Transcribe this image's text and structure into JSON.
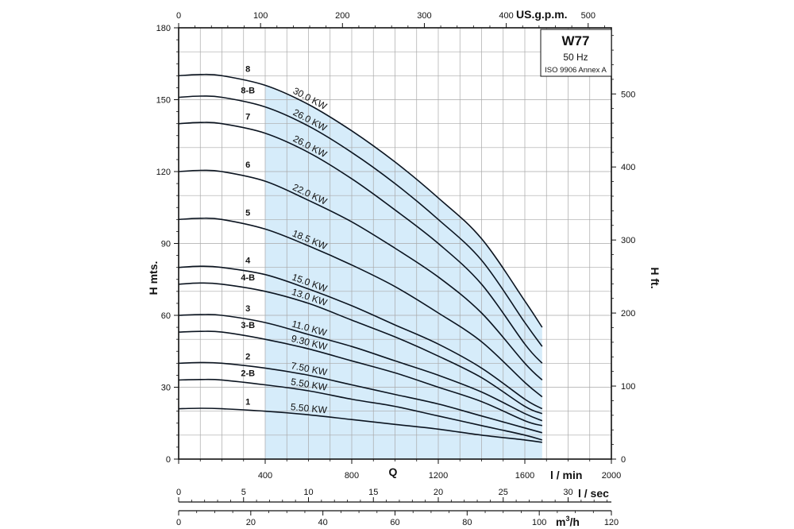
{
  "chart_data": {
    "type": "line",
    "info_box": {
      "model": "W77",
      "frequency": "50 Hz",
      "standard": "ISO 9906 Annex A"
    },
    "shaded_operating_range": {
      "q_min": 400,
      "q_max": 1680
    },
    "axes": {
      "left": {
        "label": "H mts.",
        "ticks": [
          "0",
          "30",
          "60",
          "90",
          "120",
          "150",
          "180"
        ],
        "range": [
          0,
          180
        ]
      },
      "right": {
        "label": "H ft.",
        "ticks": [
          "0",
          "100",
          "200",
          "300",
          "400",
          "500"
        ],
        "range": [
          0,
          590.55
        ]
      },
      "top": {
        "label": "US.g.p.m.",
        "ticks": [
          "0",
          "100",
          "200",
          "300",
          "400",
          "500"
        ],
        "range": [
          0,
          528.34
        ]
      },
      "bottom": {
        "label": "l / min",
        "ticks": [
          "400",
          "800",
          "1200",
          "1600",
          "2000"
        ],
        "range": [
          0,
          2000
        ]
      },
      "q_label": "Q",
      "lsec": {
        "label": "l / sec",
        "ticks": [
          "0",
          "5",
          "10",
          "15",
          "20",
          "25",
          "30"
        ],
        "range": [
          0,
          33.333
        ]
      },
      "m3h": {
        "label": "m",
        "label_sup": "3",
        "label_tail": "/h",
        "ticks": [
          "0",
          "20",
          "40",
          "60",
          "80",
          "100",
          "120"
        ],
        "range": [
          0,
          120
        ]
      }
    },
    "grid": true,
    "x": [
      0,
      100,
      200,
      400,
      600,
      800,
      1000,
      1200,
      1400,
      1600,
      1680
    ],
    "series": [
      {
        "name": "8",
        "power": "30.0 KW",
        "values": [
          160,
          160.5,
          160,
          156,
          148,
          137,
          124,
          109,
          92,
          66,
          55
        ]
      },
      {
        "name": "8-B",
        "power": "26.0 KW",
        "values": [
          151,
          151.5,
          151,
          147,
          139,
          128,
          115,
          100,
          83,
          57,
          47
        ]
      },
      {
        "name": "7",
        "power": "26.0 KW",
        "values": [
          140,
          140.5,
          140,
          136,
          128,
          117,
          104,
          90,
          73,
          48,
          40
        ]
      },
      {
        "name": "6",
        "power": "22.0 KW",
        "values": [
          120,
          120.5,
          120,
          116,
          108,
          99,
          88,
          76,
          61,
          40,
          33
        ]
      },
      {
        "name": "5",
        "power": "18.5 KW",
        "values": [
          100,
          100.5,
          100,
          96,
          89,
          81,
          72,
          61,
          49,
          32,
          26
        ]
      },
      {
        "name": "4",
        "power": "15.0 KW",
        "values": [
          80,
          80.5,
          80,
          77,
          71,
          64,
          56,
          48,
          38,
          25,
          21
        ]
      },
      {
        "name": "4-B",
        "power": "13.0 KW",
        "values": [
          73,
          73.5,
          73,
          70,
          65,
          58,
          51,
          43,
          34,
          22,
          19
        ]
      },
      {
        "name": "3",
        "power": "11.0 KW",
        "values": [
          60,
          60.3,
          60,
          57,
          52,
          47,
          41,
          35,
          28,
          19,
          16
        ]
      },
      {
        "name": "3-B",
        "power": "9.30 KW",
        "values": [
          53,
          53.3,
          53,
          50,
          46,
          41,
          36,
          30,
          24,
          16,
          14
        ]
      },
      {
        "name": "2",
        "power": "7.50 KW",
        "values": [
          40,
          40.3,
          40,
          38,
          35,
          31,
          27,
          23,
          18,
          13,
          11
        ]
      },
      {
        "name": "2-B",
        "power": "5.50 KW",
        "values": [
          33,
          33.2,
          33,
          31,
          28.5,
          25,
          22,
          18,
          14,
          10,
          8
        ]
      },
      {
        "name": "1",
        "power": "5.50 KW",
        "values": [
          21,
          21.2,
          21,
          20,
          18.5,
          16.5,
          14.5,
          12.5,
          10,
          8,
          7
        ]
      }
    ]
  }
}
